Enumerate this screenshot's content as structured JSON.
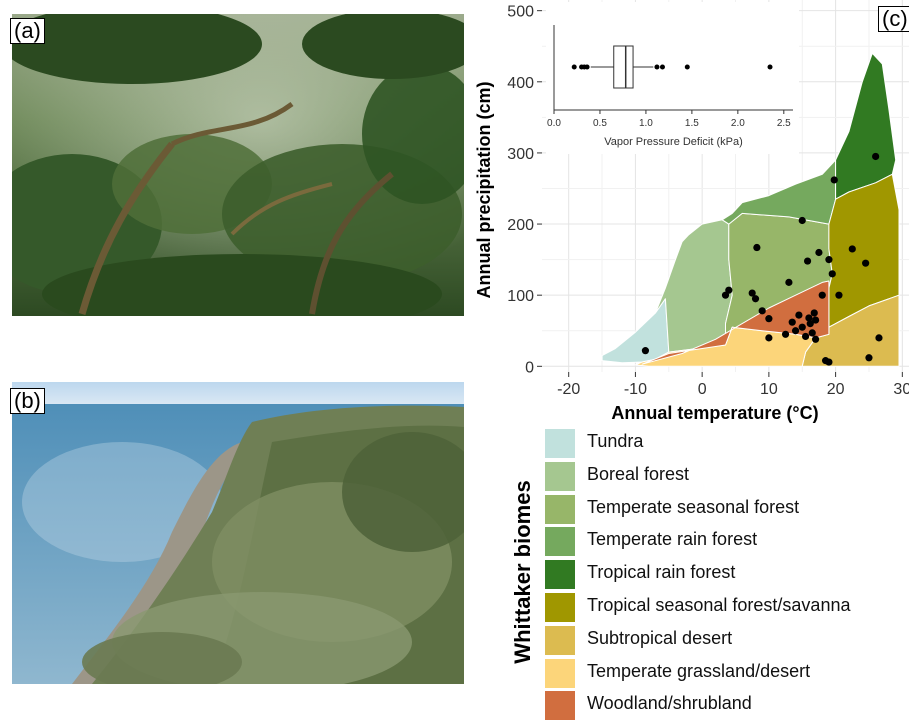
{
  "panels": {
    "a": {
      "label": "(a)",
      "photo": "cloud-forest-canopy"
    },
    "b": {
      "label": "(b)",
      "photo": "coastal-shrubland-bluff"
    },
    "c": {
      "label": "(c)"
    }
  },
  "chart_data": {
    "type": "scatter",
    "xlabel": "Annual temperature (°C)",
    "ylabel": "Annual precipitation (cm)",
    "xlim": [
      -24,
      31
    ],
    "ylim": [
      -8,
      515
    ],
    "xticks": [
      -20,
      -10,
      0,
      10,
      20,
      30
    ],
    "yticks": [
      0,
      100,
      200,
      300,
      400,
      500
    ],
    "grid": true,
    "points": [
      {
        "x": -8.5,
        "y": 22
      },
      {
        "x": 3.5,
        "y": 100
      },
      {
        "x": 4,
        "y": 107
      },
      {
        "x": 7.5,
        "y": 103
      },
      {
        "x": 8,
        "y": 95
      },
      {
        "x": 8.2,
        "y": 167
      },
      {
        "x": 9,
        "y": 78
      },
      {
        "x": 10,
        "y": 67
      },
      {
        "x": 10,
        "y": 40
      },
      {
        "x": 12.5,
        "y": 45
      },
      {
        "x": 13,
        "y": 118
      },
      {
        "x": 13.5,
        "y": 62
      },
      {
        "x": 14,
        "y": 50
      },
      {
        "x": 14.5,
        "y": 72
      },
      {
        "x": 15,
        "y": 205
      },
      {
        "x": 15,
        "y": 55
      },
      {
        "x": 15.5,
        "y": 42
      },
      {
        "x": 15.8,
        "y": 148
      },
      {
        "x": 16,
        "y": 68
      },
      {
        "x": 16.2,
        "y": 60
      },
      {
        "x": 16.5,
        "y": 47
      },
      {
        "x": 16.8,
        "y": 75
      },
      {
        "x": 17,
        "y": 38
      },
      {
        "x": 17,
        "y": 65
      },
      {
        "x": 17.5,
        "y": 160
      },
      {
        "x": 18,
        "y": 100
      },
      {
        "x": 18.5,
        "y": 8
      },
      {
        "x": 19,
        "y": 6
      },
      {
        "x": 19,
        "y": 150
      },
      {
        "x": 19.5,
        "y": 130
      },
      {
        "x": 19.8,
        "y": 262
      },
      {
        "x": 20.5,
        "y": 100
      },
      {
        "x": 22.5,
        "y": 165
      },
      {
        "x": 24.5,
        "y": 145
      },
      {
        "x": 25,
        "y": 12
      },
      {
        "x": 26,
        "y": 295
      },
      {
        "x": 26.5,
        "y": 40
      }
    ],
    "biomes": [
      {
        "name": "Tundra",
        "color": "#c1e1dd"
      },
      {
        "name": "Boreal forest",
        "color": "#a5c790"
      },
      {
        "name": "Temperate seasonal forest",
        "color": "#97b669"
      },
      {
        "name": "Temperate rain forest",
        "color": "#75a95e"
      },
      {
        "name": "Tropical rain forest",
        "color": "#317a22"
      },
      {
        "name": "Tropical seasonal forest/savanna",
        "color": "#a09700"
      },
      {
        "name": "Subtropical desert",
        "color": "#dcbb50"
      },
      {
        "name": "Temperate grassland/desert",
        "color": "#fcd57a"
      },
      {
        "name": "Woodland/shrubland",
        "color": "#d16e3f"
      }
    ],
    "inset": {
      "type": "boxplot",
      "xlabel": "Vapor Pressure Deficit (kPa)",
      "xlim": [
        0,
        2.6
      ],
      "xticks": [
        "0.0",
        "0.5",
        "1.0",
        "1.5",
        "2.0",
        "2.5"
      ],
      "q1": 0.65,
      "median": 0.78,
      "q3": 0.86,
      "whisker_low": 0.4,
      "whisker_high": 1.08,
      "outliers": [
        0.22,
        0.3,
        0.33,
        0.36,
        1.12,
        1.18,
        1.45,
        2.35
      ]
    }
  },
  "legend": {
    "title": "Whittaker biomes"
  }
}
